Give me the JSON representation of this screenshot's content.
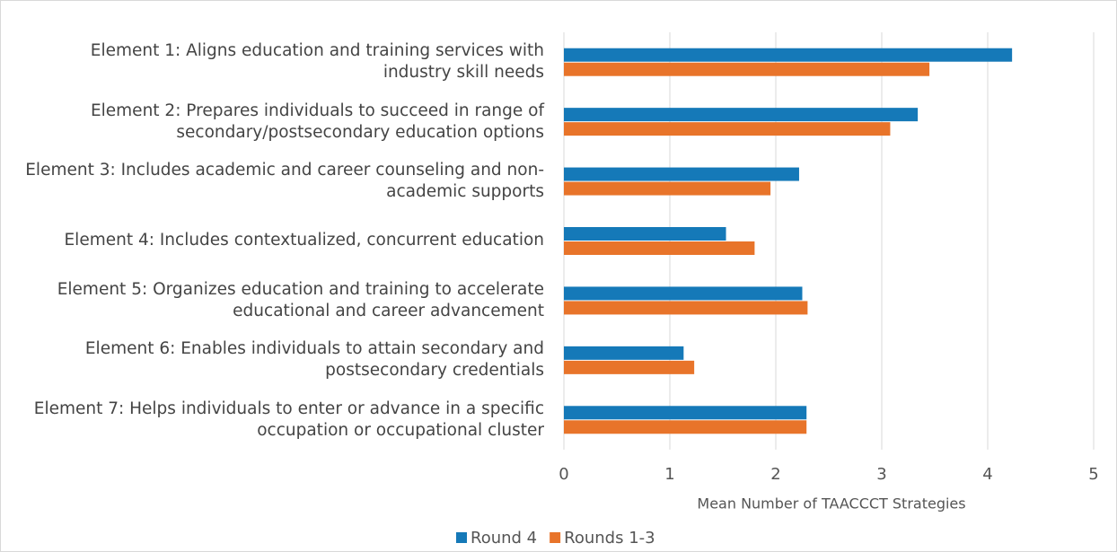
{
  "chart_data": {
    "type": "bar",
    "orientation": "horizontal",
    "categories": [
      "Element 1: Aligns education and training services with industry skill needs",
      "Element 2: Prepares individuals to succeed in range of secondary/postsecondary education options",
      "Element 3: Includes academic and career counseling and non-academic supports",
      "Element 4: Includes contextualized, concurrent education",
      "Element 5: Organizes education and training to accelerate educational and career advancement",
      "Element 6: Enables individuals to attain secondary and postsecondary credentials",
      "Element 7: Helps individuals to enter or advance in a specific occupation or occupational cluster"
    ],
    "series": [
      {
        "name": "Round 4",
        "color": "#1579b8",
        "values": [
          4.23,
          3.34,
          2.22,
          1.53,
          2.25,
          1.13,
          2.29
        ]
      },
      {
        "name": "Rounds 1-3",
        "color": "#e8742a",
        "values": [
          3.45,
          3.08,
          1.95,
          1.8,
          2.3,
          1.23,
          2.29
        ]
      }
    ],
    "x_label": "Mean Number of TAACCCT Strategies",
    "xlim": [
      0,
      5
    ],
    "xticks": [
      0,
      1,
      2,
      3,
      4,
      5
    ],
    "grid": true,
    "legend": "bottom"
  }
}
